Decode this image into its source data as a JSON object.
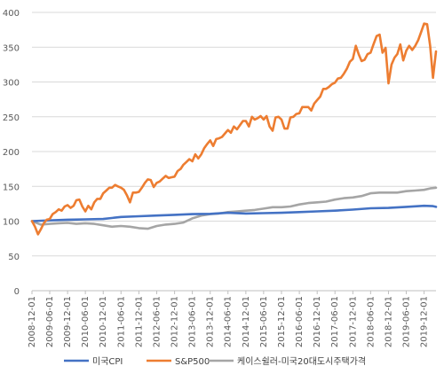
{
  "chart_data": {
    "type": "line",
    "title": "",
    "xlabel": "",
    "ylabel": "",
    "ylim": [
      0,
      400
    ],
    "yticks": [
      0,
      50,
      100,
      150,
      200,
      250,
      300,
      350,
      400
    ],
    "grid": "horizontal",
    "legend_position": "bottom",
    "x_start": "2008-12-01",
    "x_end": "2020-04-01",
    "x_tick_labels": [
      "2008-12-01",
      "2009-06-01",
      "2009-12-01",
      "2010-06-01",
      "2010-12-01",
      "2011-06-01",
      "2011-12-01",
      "2012-06-01",
      "2012-12-01",
      "2013-06-01",
      "2013-12-01",
      "2014-06-01",
      "2014-12-01",
      "2015-06-01",
      "2015-12-01",
      "2016-06-01",
      "2016-12-01",
      "2017-06-01",
      "2017-12-01",
      "2018-06-01",
      "2018-12-01",
      "2019-06-01",
      "2019-12-01"
    ],
    "series": [
      {
        "name": "미국CPI",
        "color": "#4472C4",
        "points": [
          [
            "2008-12-01",
            100
          ],
          [
            "2009-06-01",
            101
          ],
          [
            "2009-12-01",
            102
          ],
          [
            "2010-06-01",
            102.5
          ],
          [
            "2010-12-01",
            103
          ],
          [
            "2011-06-01",
            106
          ],
          [
            "2011-12-01",
            107
          ],
          [
            "2012-06-01",
            108
          ],
          [
            "2012-12-01",
            109
          ],
          [
            "2013-06-01",
            110
          ],
          [
            "2013-12-01",
            110.5
          ],
          [
            "2014-06-01",
            112
          ],
          [
            "2014-12-01",
            111
          ],
          [
            "2015-06-01",
            111.5
          ],
          [
            "2015-12-01",
            112
          ],
          [
            "2016-06-01",
            113
          ],
          [
            "2016-12-01",
            114
          ],
          [
            "2017-06-01",
            115
          ],
          [
            "2017-12-01",
            116.5
          ],
          [
            "2018-06-01",
            118.5
          ],
          [
            "2018-12-01",
            119
          ],
          [
            "2019-06-01",
            120.5
          ],
          [
            "2019-12-01",
            122
          ],
          [
            "2020-03-01",
            121.5
          ],
          [
            "2020-04-01",
            120.5
          ]
        ]
      },
      {
        "name": "S&P500",
        "color": "#ED7D31",
        "points": [
          [
            "2008-12-01",
            100
          ],
          [
            "2009-01-01",
            92
          ],
          [
            "2009-02-01",
            81
          ],
          [
            "2009-03-01",
            88
          ],
          [
            "2009-04-01",
            97
          ],
          [
            "2009-05-01",
            102
          ],
          [
            "2009-06-01",
            103
          ],
          [
            "2009-07-01",
            110
          ],
          [
            "2009-08-01",
            113
          ],
          [
            "2009-09-01",
            117
          ],
          [
            "2009-10-01",
            115
          ],
          [
            "2009-11-01",
            121
          ],
          [
            "2009-12-01",
            123
          ],
          [
            "2010-01-01",
            119
          ],
          [
            "2010-02-01",
            122
          ],
          [
            "2010-03-01",
            130
          ],
          [
            "2010-04-01",
            131
          ],
          [
            "2010-05-01",
            121
          ],
          [
            "2010-06-01",
            114
          ],
          [
            "2010-07-01",
            122
          ],
          [
            "2010-08-01",
            117
          ],
          [
            "2010-09-01",
            127
          ],
          [
            "2010-10-01",
            132
          ],
          [
            "2010-11-01",
            132
          ],
          [
            "2010-12-01",
            140
          ],
          [
            "2011-01-01",
            144
          ],
          [
            "2011-02-01",
            148
          ],
          [
            "2011-03-01",
            148
          ],
          [
            "2011-04-01",
            152
          ],
          [
            "2011-05-01",
            150
          ],
          [
            "2011-06-01",
            148
          ],
          [
            "2011-07-01",
            145
          ],
          [
            "2011-08-01",
            137
          ],
          [
            "2011-09-01",
            127
          ],
          [
            "2011-10-01",
            141
          ],
          [
            "2011-11-01",
            141
          ],
          [
            "2011-12-01",
            142
          ],
          [
            "2012-01-01",
            148
          ],
          [
            "2012-02-01",
            155
          ],
          [
            "2012-03-01",
            160
          ],
          [
            "2012-04-01",
            159
          ],
          [
            "2012-05-01",
            149
          ],
          [
            "2012-06-01",
            155
          ],
          [
            "2012-07-01",
            157
          ],
          [
            "2012-08-01",
            161
          ],
          [
            "2012-09-01",
            165
          ],
          [
            "2012-10-01",
            162
          ],
          [
            "2012-11-01",
            163
          ],
          [
            "2012-12-01",
            164
          ],
          [
            "2013-01-01",
            172
          ],
          [
            "2013-02-01",
            175
          ],
          [
            "2013-03-01",
            181
          ],
          [
            "2013-04-01",
            185
          ],
          [
            "2013-05-01",
            189
          ],
          [
            "2013-06-01",
            186
          ],
          [
            "2013-07-01",
            196
          ],
          [
            "2013-08-01",
            190
          ],
          [
            "2013-09-01",
            196
          ],
          [
            "2013-10-01",
            205
          ],
          [
            "2013-11-01",
            211
          ],
          [
            "2013-12-01",
            216
          ],
          [
            "2014-01-01",
            208
          ],
          [
            "2014-02-01",
            218
          ],
          [
            "2014-03-01",
            219
          ],
          [
            "2014-04-01",
            221
          ],
          [
            "2014-05-01",
            226
          ],
          [
            "2014-06-01",
            231
          ],
          [
            "2014-07-01",
            227
          ],
          [
            "2014-08-01",
            236
          ],
          [
            "2014-09-01",
            232
          ],
          [
            "2014-10-01",
            238
          ],
          [
            "2014-11-01",
            244
          ],
          [
            "2014-12-01",
            244
          ],
          [
            "2015-01-01",
            236
          ],
          [
            "2015-02-01",
            250
          ],
          [
            "2015-03-01",
            246
          ],
          [
            "2015-04-01",
            248
          ],
          [
            "2015-05-01",
            251
          ],
          [
            "2015-06-01",
            246
          ],
          [
            "2015-07-01",
            251
          ],
          [
            "2015-08-01",
            236
          ],
          [
            "2015-09-01",
            230
          ],
          [
            "2015-10-01",
            249
          ],
          [
            "2015-11-01",
            250
          ],
          [
            "2015-12-01",
            246
          ],
          [
            "2016-01-01",
            233
          ],
          [
            "2016-02-01",
            233
          ],
          [
            "2016-03-01",
            249
          ],
          [
            "2016-04-01",
            250
          ],
          [
            "2016-05-01",
            254
          ],
          [
            "2016-06-01",
            255
          ],
          [
            "2016-07-01",
            264
          ],
          [
            "2016-08-01",
            264
          ],
          [
            "2016-09-01",
            264
          ],
          [
            "2016-10-01",
            259
          ],
          [
            "2016-11-01",
            269
          ],
          [
            "2016-12-01",
            274
          ],
          [
            "2017-01-01",
            279
          ],
          [
            "2017-02-01",
            290
          ],
          [
            "2017-03-01",
            290
          ],
          [
            "2017-04-01",
            293
          ],
          [
            "2017-05-01",
            297
          ],
          [
            "2017-06-01",
            299
          ],
          [
            "2017-07-01",
            305
          ],
          [
            "2017-08-01",
            306
          ],
          [
            "2017-09-01",
            312
          ],
          [
            "2017-10-01",
            319
          ],
          [
            "2017-11-01",
            329
          ],
          [
            "2017-12-01",
            333
          ],
          [
            "2018-01-01",
            352
          ],
          [
            "2018-02-01",
            339
          ],
          [
            "2018-03-01",
            330
          ],
          [
            "2018-04-01",
            332
          ],
          [
            "2018-05-01",
            340
          ],
          [
            "2018-06-01",
            342
          ],
          [
            "2018-07-01",
            354
          ],
          [
            "2018-08-01",
            366
          ],
          [
            "2018-09-01",
            368
          ],
          [
            "2018-10-01",
            342
          ],
          [
            "2018-11-01",
            349
          ],
          [
            "2018-12-01",
            298
          ],
          [
            "2019-01-01",
            325
          ],
          [
            "2019-02-01",
            335
          ],
          [
            "2019-03-01",
            340
          ],
          [
            "2019-04-01",
            354
          ],
          [
            "2019-05-01",
            331
          ],
          [
            "2019-06-01",
            345
          ],
          [
            "2019-07-01",
            352
          ],
          [
            "2019-08-01",
            346
          ],
          [
            "2019-09-01",
            352
          ],
          [
            "2019-10-01",
            360
          ],
          [
            "2019-11-01",
            372
          ],
          [
            "2019-12-01",
            384
          ],
          [
            "2020-01-01",
            383
          ],
          [
            "2020-02-01",
            352
          ],
          [
            "2020-03-01",
            306
          ],
          [
            "2020-04-01",
            344
          ]
        ]
      },
      {
        "name": "케이스쉴러-미국20대도시주택가격",
        "color": "#A5A5A5",
        "points": [
          [
            "2008-12-01",
            100
          ],
          [
            "2009-03-01",
            95
          ],
          [
            "2009-06-01",
            96
          ],
          [
            "2009-09-01",
            97
          ],
          [
            "2009-12-01",
            97.5
          ],
          [
            "2010-03-01",
            96
          ],
          [
            "2010-06-01",
            97
          ],
          [
            "2010-09-01",
            96
          ],
          [
            "2010-12-01",
            94
          ],
          [
            "2011-03-01",
            92
          ],
          [
            "2011-06-01",
            93
          ],
          [
            "2011-09-01",
            92
          ],
          [
            "2011-12-01",
            90
          ],
          [
            "2012-03-01",
            89
          ],
          [
            "2012-06-01",
            93
          ],
          [
            "2012-09-01",
            95
          ],
          [
            "2012-12-01",
            96
          ],
          [
            "2013-03-01",
            98
          ],
          [
            "2013-06-01",
            104
          ],
          [
            "2013-09-01",
            108
          ],
          [
            "2013-12-01",
            110
          ],
          [
            "2014-03-01",
            111
          ],
          [
            "2014-06-01",
            113
          ],
          [
            "2014-09-01",
            114
          ],
          [
            "2014-12-01",
            115
          ],
          [
            "2015-03-01",
            116
          ],
          [
            "2015-06-01",
            118
          ],
          [
            "2015-09-01",
            120
          ],
          [
            "2015-12-01",
            120
          ],
          [
            "2016-03-01",
            121
          ],
          [
            "2016-06-01",
            124
          ],
          [
            "2016-09-01",
            126
          ],
          [
            "2016-12-01",
            127
          ],
          [
            "2017-03-01",
            128
          ],
          [
            "2017-06-01",
            131
          ],
          [
            "2017-09-01",
            133
          ],
          [
            "2017-12-01",
            134
          ],
          [
            "2018-03-01",
            136
          ],
          [
            "2018-06-01",
            140
          ],
          [
            "2018-09-01",
            141
          ],
          [
            "2018-12-01",
            141
          ],
          [
            "2019-03-01",
            141
          ],
          [
            "2019-06-01",
            143
          ],
          [
            "2019-09-01",
            144
          ],
          [
            "2019-12-01",
            145
          ],
          [
            "2020-02-01",
            147
          ],
          [
            "2020-04-01",
            148
          ]
        ]
      }
    ]
  }
}
